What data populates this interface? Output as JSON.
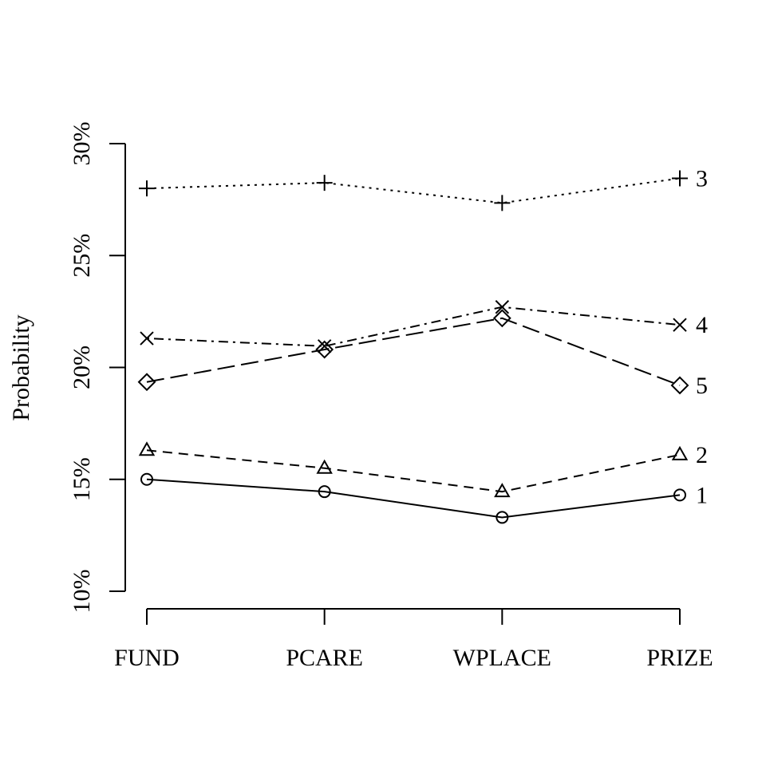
{
  "chart_data": {
    "type": "line",
    "ylabel": "Probability",
    "xlabel": "",
    "categories": [
      "FUND",
      "PCARE",
      "WPLACE",
      "PRIZE"
    ],
    "ylim": [
      10,
      30
    ],
    "yticks": [
      10,
      15,
      20,
      25,
      30
    ],
    "ytick_labels": [
      "10%",
      "15%",
      "20%",
      "25%",
      "30%"
    ],
    "grid": false,
    "legend": "none",
    "series": [
      {
        "name": "1",
        "marker": "circle",
        "dash": "solid",
        "values": [
          15.0,
          14.45,
          13.3,
          14.3
        ]
      },
      {
        "name": "2",
        "marker": "triangle",
        "dash": "dashed",
        "values": [
          16.3,
          15.5,
          14.45,
          16.1
        ]
      },
      {
        "name": "3",
        "marker": "plus",
        "dash": "dotted",
        "values": [
          28.0,
          28.25,
          27.35,
          28.45
        ]
      },
      {
        "name": "4",
        "marker": "cross",
        "dash": "dotdash",
        "values": [
          21.3,
          20.95,
          22.7,
          21.9
        ]
      },
      {
        "name": "5",
        "marker": "diamond",
        "dash": "longdash",
        "values": [
          19.35,
          20.8,
          22.2,
          19.2
        ]
      }
    ]
  }
}
